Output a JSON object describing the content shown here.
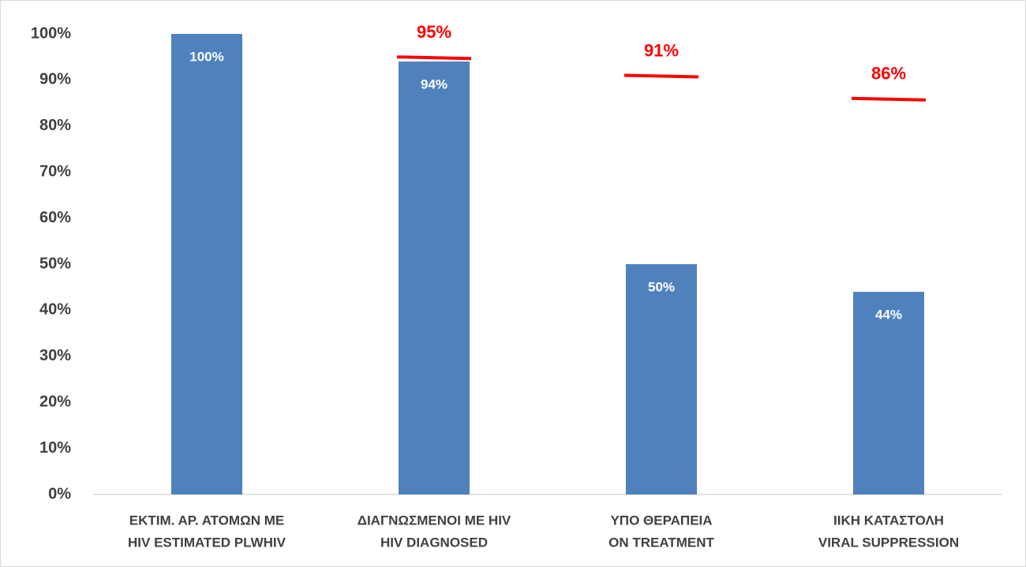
{
  "chart_data": {
    "type": "bar",
    "categories": [
      [
        "ΕΚΤΙΜ. ΑΡ. ΑΤΟΜΩΝ ΜΕ",
        "HIV ESTIMATED PLWHIV"
      ],
      [
        "ΔΙΑΓΝΩΣΜΕΝΟΙ ΜΕ HIV",
        "HIV DIAGNOSED"
      ],
      [
        "ΥΠΟ ΘΕΡΑΠΕΙΑ",
        "ON TREATMENT"
      ],
      [
        "ΙΙΚΗ ΚΑΤΑΣΤΟΛΗ",
        "VIRAL SUPPRESSION"
      ]
    ],
    "values": [
      100,
      94,
      50,
      44
    ],
    "value_labels": [
      "100%",
      "94%",
      "50%",
      "44%"
    ],
    "color": "#4f81bd",
    "targets": [
      null,
      95,
      91,
      86
    ],
    "target_labels": [
      null,
      "95%",
      "91%",
      "86%"
    ],
    "target_color": "#ff0000",
    "ylim": [
      0,
      100
    ],
    "yticks": [
      {
        "value": 0,
        "label": "0%"
      },
      {
        "value": 10,
        "label": "10%"
      },
      {
        "value": 20,
        "label": "20%"
      },
      {
        "value": 30,
        "label": "30%"
      },
      {
        "value": 40,
        "label": "40%"
      },
      {
        "value": 50,
        "label": "50%"
      },
      {
        "value": 60,
        "label": "60%"
      },
      {
        "value": 70,
        "label": "70%"
      },
      {
        "value": 80,
        "label": "80%"
      },
      {
        "value": 90,
        "label": "90%"
      },
      {
        "value": 100,
        "label": "100%"
      }
    ],
    "grid": false
  }
}
